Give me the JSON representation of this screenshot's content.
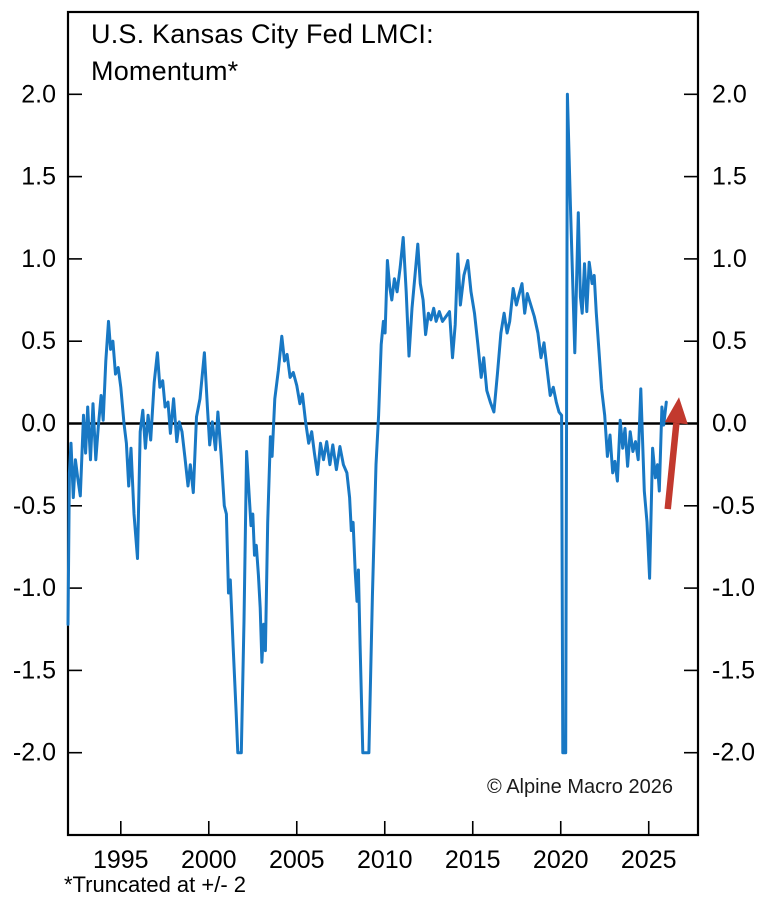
{
  "title": {
    "line1": "U.S. Kansas City Fed LMCI:",
    "line2": "Momentum*"
  },
  "footnote": "*Truncated at +/- 2",
  "copyright": "© Alpine Macro 2026",
  "colors": {
    "series": "#1878c4",
    "arrow": "#c2392e",
    "axis": "#000000",
    "zero_line": "#000000",
    "background": "#ffffff"
  },
  "chart_data": {
    "type": "line",
    "title": "U.S. Kansas City Fed LMCI: Momentum*",
    "xlabel": "",
    "ylabel": "",
    "xlim": [
      1992.0,
      2027.8
    ],
    "ylim": [
      -2.5,
      2.5
    ],
    "grid": false,
    "zero_line": true,
    "truncated_at": 2,
    "x_ticks": [
      1995,
      2000,
      2005,
      2010,
      2015,
      2020,
      2025
    ],
    "y_ticks": [
      2.0,
      1.5,
      1.0,
      0.5,
      0.0,
      -0.5,
      -1.0,
      -1.5,
      -2.0
    ],
    "y_tick_labels": [
      "2.0",
      "1.5",
      "1.0",
      "0.5",
      "0.0",
      "-0.5",
      "-1.0",
      "-1.5",
      "-2.0"
    ],
    "series": [
      {
        "name": "KC Fed LMCI Momentum",
        "color": "#1878c4",
        "points": [
          [
            1992.0,
            -1.22
          ],
          [
            1992.08,
            -0.3
          ],
          [
            1992.17,
            -0.12
          ],
          [
            1992.3,
            -0.45
          ],
          [
            1992.42,
            -0.22
          ],
          [
            1992.55,
            -0.33
          ],
          [
            1992.7,
            -0.44
          ],
          [
            1992.88,
            0.05
          ],
          [
            1993.0,
            -0.18
          ],
          [
            1993.12,
            0.1
          ],
          [
            1993.28,
            -0.22
          ],
          [
            1993.42,
            0.12
          ],
          [
            1993.58,
            -0.22
          ],
          [
            1993.72,
            -0.02
          ],
          [
            1993.88,
            0.17
          ],
          [
            1994.0,
            0.02
          ],
          [
            1994.15,
            0.38
          ],
          [
            1994.3,
            0.62
          ],
          [
            1994.42,
            0.45
          ],
          [
            1994.55,
            0.5
          ],
          [
            1994.7,
            0.3
          ],
          [
            1994.85,
            0.34
          ],
          [
            1995.0,
            0.22
          ],
          [
            1995.18,
            0.0
          ],
          [
            1995.32,
            -0.12
          ],
          [
            1995.45,
            -0.38
          ],
          [
            1995.58,
            -0.15
          ],
          [
            1995.75,
            -0.55
          ],
          [
            1995.95,
            -0.82
          ],
          [
            1996.1,
            -0.05
          ],
          [
            1996.25,
            0.08
          ],
          [
            1996.4,
            -0.15
          ],
          [
            1996.55,
            0.05
          ],
          [
            1996.7,
            -0.1
          ],
          [
            1996.9,
            0.25
          ],
          [
            1997.08,
            0.43
          ],
          [
            1997.22,
            0.22
          ],
          [
            1997.38,
            0.26
          ],
          [
            1997.52,
            0.1
          ],
          [
            1997.68,
            0.13
          ],
          [
            1997.82,
            -0.06
          ],
          [
            1998.0,
            0.15
          ],
          [
            1998.18,
            -0.11
          ],
          [
            1998.32,
            0.01
          ],
          [
            1998.48,
            -0.05
          ],
          [
            1998.65,
            -0.21
          ],
          [
            1998.82,
            -0.38
          ],
          [
            1998.95,
            -0.25
          ],
          [
            1999.12,
            -0.42
          ],
          [
            1999.3,
            0.04
          ],
          [
            1999.5,
            0.15
          ],
          [
            1999.75,
            0.43
          ],
          [
            1999.92,
            0.1
          ],
          [
            2000.05,
            -0.13
          ],
          [
            2000.2,
            0.01
          ],
          [
            2000.38,
            -0.16
          ],
          [
            2000.52,
            0.07
          ],
          [
            2000.7,
            -0.19
          ],
          [
            2000.88,
            -0.5
          ],
          [
            2001.0,
            -0.55
          ],
          [
            2001.12,
            -1.03
          ],
          [
            2001.22,
            -0.95
          ],
          [
            2001.38,
            -1.35
          ],
          [
            2001.55,
            -1.75
          ],
          [
            2001.65,
            -2.0
          ],
          [
            2001.85,
            -2.0
          ],
          [
            2002.0,
            -1.2
          ],
          [
            2002.15,
            -0.17
          ],
          [
            2002.3,
            -0.45
          ],
          [
            2002.4,
            -0.62
          ],
          [
            2002.5,
            -0.55
          ],
          [
            2002.6,
            -0.8
          ],
          [
            2002.7,
            -0.74
          ],
          [
            2002.82,
            -0.92
          ],
          [
            2002.92,
            -1.12
          ],
          [
            2003.02,
            -1.45
          ],
          [
            2003.12,
            -1.22
          ],
          [
            2003.22,
            -1.38
          ],
          [
            2003.35,
            -0.6
          ],
          [
            2003.5,
            -0.08
          ],
          [
            2003.6,
            -0.2
          ],
          [
            2003.75,
            0.15
          ],
          [
            2003.95,
            0.32
          ],
          [
            2004.15,
            0.53
          ],
          [
            2004.3,
            0.38
          ],
          [
            2004.45,
            0.42
          ],
          [
            2004.62,
            0.28
          ],
          [
            2004.8,
            0.31
          ],
          [
            2005.0,
            0.23
          ],
          [
            2005.18,
            0.12
          ],
          [
            2005.32,
            0.18
          ],
          [
            2005.5,
            0.01
          ],
          [
            2005.68,
            -0.12
          ],
          [
            2005.85,
            -0.05
          ],
          [
            2006.0,
            -0.18
          ],
          [
            2006.18,
            -0.31
          ],
          [
            2006.35,
            -0.12
          ],
          [
            2006.52,
            -0.22
          ],
          [
            2006.7,
            -0.11
          ],
          [
            2006.88,
            -0.25
          ],
          [
            2007.05,
            -0.13
          ],
          [
            2007.25,
            -0.28
          ],
          [
            2007.45,
            -0.14
          ],
          [
            2007.65,
            -0.25
          ],
          [
            2007.85,
            -0.3
          ],
          [
            2008.0,
            -0.45
          ],
          [
            2008.1,
            -0.65
          ],
          [
            2008.2,
            -0.6
          ],
          [
            2008.32,
            -0.9
          ],
          [
            2008.42,
            -1.08
          ],
          [
            2008.5,
            -0.89
          ],
          [
            2008.6,
            -1.35
          ],
          [
            2008.75,
            -2.0
          ],
          [
            2009.1,
            -2.0
          ],
          [
            2009.3,
            -1.05
          ],
          [
            2009.5,
            -0.25
          ],
          [
            2009.65,
            0.05
          ],
          [
            2009.8,
            0.48
          ],
          [
            2009.92,
            0.62
          ],
          [
            2010.02,
            0.55
          ],
          [
            2010.15,
            0.99
          ],
          [
            2010.28,
            0.83
          ],
          [
            2010.4,
            0.75
          ],
          [
            2010.55,
            0.88
          ],
          [
            2010.7,
            0.8
          ],
          [
            2010.88,
            0.95
          ],
          [
            2011.05,
            1.13
          ],
          [
            2011.22,
            0.8
          ],
          [
            2011.38,
            0.41
          ],
          [
            2011.55,
            0.7
          ],
          [
            2011.72,
            0.9
          ],
          [
            2011.88,
            1.09
          ],
          [
            2012.02,
            0.85
          ],
          [
            2012.18,
            0.75
          ],
          [
            2012.32,
            0.54
          ],
          [
            2012.48,
            0.67
          ],
          [
            2012.62,
            0.63
          ],
          [
            2012.78,
            0.7
          ],
          [
            2012.92,
            0.62
          ],
          [
            2013.1,
            0.68
          ],
          [
            2013.28,
            0.62
          ],
          [
            2013.48,
            0.65
          ],
          [
            2013.68,
            0.68
          ],
          [
            2013.85,
            0.4
          ],
          [
            2014.0,
            0.6
          ],
          [
            2014.15,
            1.03
          ],
          [
            2014.3,
            0.72
          ],
          [
            2014.5,
            0.9
          ],
          [
            2014.72,
            0.99
          ],
          [
            2014.9,
            0.8
          ],
          [
            2015.1,
            0.67
          ],
          [
            2015.28,
            0.49
          ],
          [
            2015.48,
            0.28
          ],
          [
            2015.62,
            0.4
          ],
          [
            2015.8,
            0.2
          ],
          [
            2016.0,
            0.13
          ],
          [
            2016.2,
            0.07
          ],
          [
            2016.4,
            0.3
          ],
          [
            2016.6,
            0.55
          ],
          [
            2016.78,
            0.67
          ],
          [
            2016.95,
            0.55
          ],
          [
            2017.1,
            0.62
          ],
          [
            2017.3,
            0.82
          ],
          [
            2017.48,
            0.72
          ],
          [
            2017.62,
            0.78
          ],
          [
            2017.8,
            0.85
          ],
          [
            2017.95,
            0.67
          ],
          [
            2018.1,
            0.79
          ],
          [
            2018.3,
            0.72
          ],
          [
            2018.5,
            0.65
          ],
          [
            2018.7,
            0.55
          ],
          [
            2018.88,
            0.4
          ],
          [
            2019.05,
            0.49
          ],
          [
            2019.2,
            0.35
          ],
          [
            2019.4,
            0.17
          ],
          [
            2019.58,
            0.22
          ],
          [
            2019.75,
            0.13
          ],
          [
            2019.9,
            0.07
          ],
          [
            2020.05,
            0.05
          ],
          [
            2020.12,
            -2.0
          ],
          [
            2020.28,
            -2.0
          ],
          [
            2020.38,
            2.0
          ],
          [
            2020.55,
            1.33
          ],
          [
            2020.8,
            0.43
          ],
          [
            2021.0,
            1.28
          ],
          [
            2021.12,
            0.77
          ],
          [
            2021.22,
            0.67
          ],
          [
            2021.35,
            0.97
          ],
          [
            2021.48,
            0.68
          ],
          [
            2021.62,
            0.98
          ],
          [
            2021.78,
            0.85
          ],
          [
            2021.9,
            0.9
          ],
          [
            2022.02,
            0.67
          ],
          [
            2022.18,
            0.43
          ],
          [
            2022.32,
            0.21
          ],
          [
            2022.5,
            0.05
          ],
          [
            2022.65,
            -0.2
          ],
          [
            2022.8,
            -0.07
          ],
          [
            2022.95,
            -0.3
          ],
          [
            2023.08,
            -0.23
          ],
          [
            2023.22,
            -0.35
          ],
          [
            2023.38,
            0.02
          ],
          [
            2023.52,
            -0.15
          ],
          [
            2023.65,
            -0.03
          ],
          [
            2023.8,
            -0.26
          ],
          [
            2023.95,
            -0.05
          ],
          [
            2024.1,
            -0.17
          ],
          [
            2024.25,
            -0.11
          ],
          [
            2024.4,
            -0.22
          ],
          [
            2024.55,
            0.21
          ],
          [
            2024.75,
            -0.41
          ],
          [
            2024.9,
            -0.6
          ],
          [
            2025.05,
            -0.94
          ],
          [
            2025.22,
            -0.15
          ],
          [
            2025.38,
            -0.33
          ],
          [
            2025.5,
            -0.25
          ],
          [
            2025.6,
            -0.41
          ],
          [
            2025.75,
            0.1
          ],
          [
            2025.85,
            -0.01
          ],
          [
            2026.0,
            0.13
          ]
        ]
      }
    ],
    "annotations": [
      {
        "type": "arrow",
        "from": [
          2026.08,
          -0.52
        ],
        "to": [
          2026.72,
          0.16
        ],
        "color": "#c2392e"
      }
    ]
  }
}
